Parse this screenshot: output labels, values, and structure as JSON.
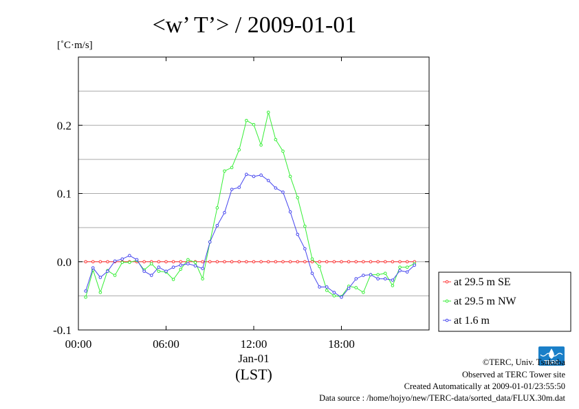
{
  "chart_data": {
    "type": "line",
    "title": "<w’ T’> / 2009-01-01",
    "ylabel": "[˚C·m/s]",
    "xlim": [
      0,
      24
    ],
    "ylim": [
      -0.1,
      0.3
    ],
    "grid": true,
    "x_ticks": [
      {
        "value": 0,
        "label": "00:00"
      },
      {
        "value": 6,
        "label": "06:00"
      },
      {
        "value": 12,
        "label": "12:00"
      },
      {
        "value": 18,
        "label": "18:00"
      }
    ],
    "x_sublabel": "Jan-01",
    "x_axis_label": "(LST)",
    "y_ticks": [
      {
        "value": -0.1,
        "label": "-0.1"
      },
      {
        "value": 0.0,
        "label": "0.0"
      },
      {
        "value": 0.1,
        "label": "0.1"
      },
      {
        "value": 0.2,
        "label": "0.2"
      }
    ],
    "legend_position": "right",
    "x": [
      0.5,
      1,
      1.5,
      2,
      2.5,
      3,
      3.5,
      4,
      4.5,
      5,
      5.5,
      6,
      6.5,
      7,
      7.5,
      8,
      8.5,
      9,
      9.5,
      10,
      10.5,
      11,
      11.5,
      12,
      12.5,
      13,
      13.5,
      14,
      14.5,
      15,
      15.5,
      16,
      16.5,
      17,
      17.5,
      18,
      18.5,
      19,
      19.5,
      20,
      20.5,
      21,
      21.5,
      22,
      22.5,
      23
    ],
    "series": [
      {
        "name": "at 29.5 m SE",
        "color": "#ff3333",
        "values": [
          0,
          0,
          0,
          0,
          0,
          0,
          0,
          0,
          0,
          0,
          0,
          0,
          0,
          0,
          0,
          0,
          0,
          0,
          0,
          0,
          0,
          0,
          0,
          0,
          0,
          0,
          0,
          0,
          0,
          0,
          0,
          0,
          0,
          0,
          0,
          0,
          0,
          0,
          0,
          0,
          0,
          0,
          0,
          0,
          0,
          0
        ]
      },
      {
        "name": "at 29.5 m NW",
        "color": "#33ee33",
        "values": [
          -0.052,
          -0.012,
          -0.045,
          -0.013,
          -0.02,
          -0.001,
          -0.001,
          0.002,
          -0.012,
          -0.003,
          -0.014,
          -0.015,
          -0.026,
          -0.011,
          0.003,
          -0.001,
          -0.025,
          0.029,
          0.079,
          0.133,
          0.138,
          0.164,
          0.207,
          0.201,
          0.171,
          0.219,
          0.179,
          0.162,
          0.125,
          0.094,
          0.052,
          0.004,
          -0.007,
          -0.042,
          -0.05,
          -0.051,
          -0.036,
          -0.038,
          -0.045,
          -0.019,
          -0.019,
          -0.017,
          -0.035,
          -0.008,
          -0.008,
          -0.003
        ]
      },
      {
        "name": "at 1.6 m",
        "color": "#4444ee",
        "values": [
          -0.043,
          -0.009,
          -0.023,
          -0.014,
          0.001,
          0.004,
          0.009,
          0.003,
          -0.014,
          -0.02,
          -0.008,
          -0.014,
          -0.008,
          -0.005,
          -0.003,
          -0.006,
          -0.01,
          0.029,
          0.053,
          0.072,
          0.106,
          0.109,
          0.128,
          0.125,
          0.127,
          0.119,
          0.108,
          0.102,
          0.073,
          0.04,
          0.019,
          -0.017,
          -0.037,
          -0.037,
          -0.045,
          -0.052,
          -0.039,
          -0.025,
          -0.02,
          -0.019,
          -0.025,
          -0.025,
          -0.027,
          -0.013,
          -0.015,
          -0.005
        ]
      }
    ]
  },
  "footer": {
    "copyright": "©TERC, Univ. Tsukuba",
    "observed": "Observed at TERC Tower site",
    "created": "Created Automatically at 2009-01-01/23:55:50",
    "source": "Data source : /home/hojyo/new/TERC-data/sorted_data/FLUX.30m.dat"
  },
  "logo": {
    "text": "TERC",
    "color": "#1a7fc8"
  }
}
